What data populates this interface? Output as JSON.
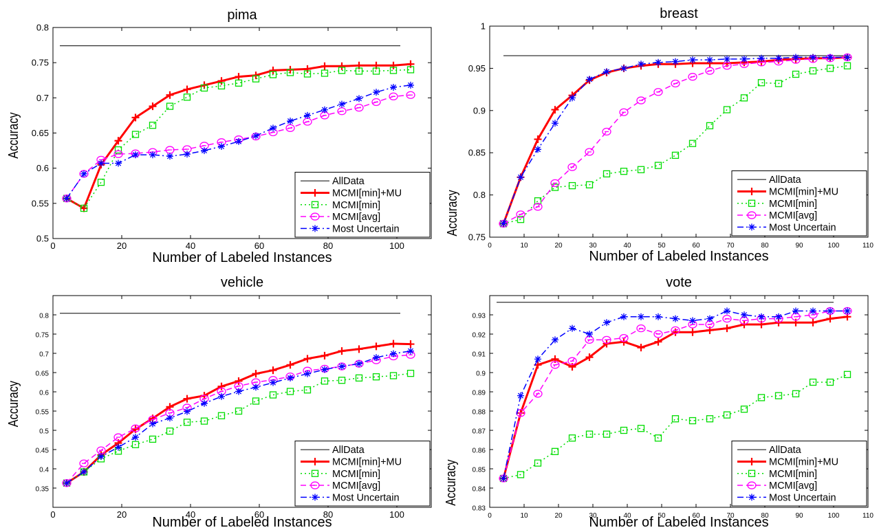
{
  "chart_data": [
    {
      "type": "line",
      "title": "pima",
      "xlabel": "Number of Labeled Instances",
      "ylabel": "Accuracy",
      "xlim": [
        0,
        110
      ],
      "ylim": [
        0.5,
        0.8
      ],
      "xticks": [
        0,
        20,
        40,
        60,
        80,
        100
      ],
      "xtick_labels": [
        "0",
        "20",
        "40",
        "60",
        "80",
        "100"
      ],
      "yticks": [
        0.5,
        0.55,
        0.6,
        0.65,
        0.7,
        0.75,
        0.8
      ],
      "ytick_labels": [
        "0.5",
        "0.55",
        "0.6",
        "0.65",
        "0.7",
        "0.75",
        "0.8"
      ],
      "legend_position": "bottom-right",
      "x": [
        4,
        9,
        14,
        19,
        24,
        29,
        34,
        39,
        44,
        49,
        54,
        59,
        64,
        69,
        74,
        79,
        84,
        89,
        94,
        99,
        104
      ],
      "reference": {
        "name": "AllData",
        "y": 0.774,
        "x_range": [
          2,
          101
        ]
      },
      "series": [
        {
          "name": "MCMI[min]+MU",
          "values": [
            0.557,
            0.543,
            0.605,
            0.639,
            0.672,
            0.688,
            0.704,
            0.712,
            0.718,
            0.724,
            0.73,
            0.732,
            0.739,
            0.74,
            0.741,
            0.745,
            0.745,
            0.746,
            0.746,
            0.746,
            0.748
          ]
        },
        {
          "name": "MCMI[min]",
          "values": [
            0.557,
            0.543,
            0.58,
            0.626,
            0.648,
            0.661,
            0.688,
            0.701,
            0.714,
            0.717,
            0.721,
            0.727,
            0.733,
            0.736,
            0.734,
            0.735,
            0.739,
            0.738,
            0.738,
            0.739,
            0.74
          ]
        },
        {
          "name": "MCMI[avg]",
          "values": [
            0.557,
            0.592,
            0.612,
            0.62,
            0.621,
            0.623,
            0.626,
            0.627,
            0.632,
            0.637,
            0.641,
            0.645,
            0.651,
            0.657,
            0.666,
            0.675,
            0.681,
            0.686,
            0.694,
            0.702,
            0.704
          ]
        },
        {
          "name": "Most Uncertain",
          "values": [
            0.557,
            0.592,
            0.607,
            0.607,
            0.619,
            0.619,
            0.617,
            0.62,
            0.625,
            0.631,
            0.638,
            0.646,
            0.657,
            0.667,
            0.675,
            0.683,
            0.691,
            0.699,
            0.708,
            0.715,
            0.718
          ]
        }
      ]
    },
    {
      "type": "line",
      "title": "breast",
      "xlabel": "Number of Labeled Instances",
      "ylabel": "Accuracy",
      "xlim": [
        0,
        110
      ],
      "ylim": [
        0.75,
        1.0
      ],
      "xticks": [
        0,
        10,
        20,
        30,
        40,
        50,
        60,
        70,
        80,
        90,
        100,
        110
      ],
      "xtick_labels": [
        "0",
        "10",
        "20",
        "30",
        "40",
        "50",
        "60",
        "70",
        "80",
        "90",
        "100",
        "110"
      ],
      "yticks": [
        0.75,
        0.8,
        0.85,
        0.9,
        0.95,
        1.0
      ],
      "ytick_labels": [
        "0.75",
        "0.8",
        "0.85",
        "0.9",
        "0.95",
        "1"
      ],
      "legend_position": "bottom-right",
      "x": [
        4,
        9,
        14,
        19,
        24,
        29,
        34,
        39,
        44,
        49,
        54,
        59,
        64,
        69,
        74,
        79,
        84,
        89,
        94,
        99,
        104
      ],
      "reference": {
        "name": "AllData",
        "y": 0.965,
        "x_range": [
          4,
          104
        ]
      },
      "series": [
        {
          "name": "MCMI[min]+MU",
          "values": [
            0.766,
            0.821,
            0.866,
            0.901,
            0.918,
            0.936,
            0.945,
            0.95,
            0.953,
            0.955,
            0.955,
            0.956,
            0.956,
            0.956,
            0.957,
            0.958,
            0.96,
            0.961,
            0.962,
            0.962,
            0.963
          ]
        },
        {
          "name": "MCMI[min]",
          "values": [
            0.766,
            0.771,
            0.793,
            0.809,
            0.811,
            0.812,
            0.825,
            0.828,
            0.83,
            0.835,
            0.847,
            0.861,
            0.882,
            0.901,
            0.915,
            0.933,
            0.932,
            0.943,
            0.947,
            0.95,
            0.953
          ]
        },
        {
          "name": "MCMI[avg]",
          "values": [
            0.766,
            0.777,
            0.786,
            0.814,
            0.833,
            0.851,
            0.875,
            0.898,
            0.912,
            0.922,
            0.932,
            0.94,
            0.947,
            0.953,
            0.955,
            0.957,
            0.958,
            0.96,
            0.961,
            0.962,
            0.963
          ]
        },
        {
          "name": "Most Uncertain",
          "values": [
            0.766,
            0.821,
            0.854,
            0.885,
            0.915,
            0.937,
            0.946,
            0.95,
            0.955,
            0.957,
            0.958,
            0.96,
            0.96,
            0.961,
            0.961,
            0.962,
            0.962,
            0.963,
            0.963,
            0.963,
            0.963
          ]
        }
      ]
    },
    {
      "type": "line",
      "title": "vehicle",
      "xlabel": "Number of Labeled Instances",
      "ylabel": "Accuracy",
      "xlim": [
        0,
        110
      ],
      "ylim": [
        0.3,
        0.85
      ],
      "xticks": [
        0,
        20,
        40,
        60,
        80,
        100
      ],
      "xtick_labels": [
        "0",
        "20",
        "40",
        "60",
        "80",
        "100"
      ],
      "yticks": [
        0.35,
        0.4,
        0.45,
        0.5,
        0.55,
        0.6,
        0.65,
        0.7,
        0.75,
        0.8
      ],
      "ytick_labels": [
        "0.35",
        "0.4",
        "0.45",
        "0.5",
        "0.55",
        "0.6",
        "0.65",
        "0.7",
        "0.75",
        "0.8"
      ],
      "legend_position": "bottom-right",
      "x": [
        4,
        9,
        14,
        19,
        24,
        29,
        34,
        39,
        44,
        49,
        54,
        59,
        64,
        69,
        74,
        79,
        84,
        89,
        94,
        99,
        104
      ],
      "reference": {
        "name": "AllData",
        "y": 0.804,
        "x_range": [
          2,
          101
        ]
      },
      "series": [
        {
          "name": "MCMI[min]+MU",
          "values": [
            0.363,
            0.392,
            0.436,
            0.467,
            0.503,
            0.531,
            0.561,
            0.582,
            0.59,
            0.614,
            0.628,
            0.647,
            0.656,
            0.67,
            0.686,
            0.694,
            0.706,
            0.711,
            0.718,
            0.725,
            0.724
          ]
        },
        {
          "name": "MCMI[min]",
          "values": [
            0.363,
            0.392,
            0.426,
            0.446,
            0.463,
            0.477,
            0.498,
            0.521,
            0.524,
            0.538,
            0.55,
            0.576,
            0.592,
            0.601,
            0.605,
            0.628,
            0.63,
            0.636,
            0.639,
            0.642,
            0.648
          ]
        },
        {
          "name": "MCMI[avg]",
          "values": [
            0.363,
            0.414,
            0.448,
            0.482,
            0.505,
            0.528,
            0.545,
            0.559,
            0.582,
            0.601,
            0.615,
            0.625,
            0.631,
            0.64,
            0.655,
            0.66,
            0.666,
            0.673,
            0.682,
            0.692,
            0.696
          ]
        },
        {
          "name": "Most Uncertain",
          "values": [
            0.363,
            0.392,
            0.432,
            0.456,
            0.482,
            0.517,
            0.532,
            0.549,
            0.57,
            0.588,
            0.601,
            0.612,
            0.624,
            0.636,
            0.647,
            0.658,
            0.666,
            0.673,
            0.689,
            0.699,
            0.706
          ]
        }
      ]
    },
    {
      "type": "line",
      "title": "vote",
      "xlabel": "Number of Labeled Instances",
      "ylabel": "Accuracy",
      "xlim": [
        0,
        110
      ],
      "ylim": [
        0.83,
        0.94
      ],
      "xticks": [
        0,
        10,
        20,
        30,
        40,
        50,
        60,
        70,
        80,
        90,
        100,
        110
      ],
      "xtick_labels": [
        "0",
        "10",
        "20",
        "30",
        "40",
        "50",
        "60",
        "70",
        "80",
        "90",
        "100",
        "110"
      ],
      "yticks": [
        0.83,
        0.84,
        0.85,
        0.86,
        0.87,
        0.88,
        0.89,
        0.9,
        0.91,
        0.92,
        0.93
      ],
      "ytick_labels": [
        "0.83",
        "0.84",
        "0.85",
        "0.86",
        "0.87",
        "0.88",
        "0.89",
        "0.9",
        "0.91",
        "0.92",
        "0.93"
      ],
      "legend_position": "bottom-right",
      "x": [
        4,
        9,
        14,
        19,
        24,
        29,
        34,
        39,
        44,
        49,
        54,
        59,
        64,
        69,
        74,
        79,
        84,
        89,
        94,
        99,
        104
      ],
      "reference": {
        "name": "AllData",
        "y": 0.9365,
        "x_range": [
          2,
          100
        ]
      },
      "series": [
        {
          "name": "MCMI[min]+MU",
          "values": [
            0.845,
            0.879,
            0.904,
            0.907,
            0.903,
            0.908,
            0.915,
            0.916,
            0.913,
            0.916,
            0.921,
            0.921,
            0.922,
            0.923,
            0.925,
            0.925,
            0.926,
            0.926,
            0.926,
            0.928,
            0.929
          ]
        },
        {
          "name": "MCMI[min]",
          "values": [
            0.845,
            0.847,
            0.853,
            0.859,
            0.866,
            0.868,
            0.868,
            0.87,
            0.871,
            0.866,
            0.876,
            0.875,
            0.876,
            0.878,
            0.881,
            0.887,
            0.888,
            0.889,
            0.895,
            0.895,
            0.899
          ]
        },
        {
          "name": "MCMI[avg]",
          "values": [
            0.845,
            0.879,
            0.889,
            0.904,
            0.906,
            0.917,
            0.917,
            0.918,
            0.923,
            0.92,
            0.922,
            0.925,
            0.925,
            0.928,
            0.927,
            0.928,
            0.928,
            0.929,
            0.93,
            0.932,
            0.932
          ]
        },
        {
          "name": "Most Uncertain",
          "values": [
            0.845,
            0.888,
            0.907,
            0.917,
            0.923,
            0.92,
            0.926,
            0.929,
            0.929,
            0.929,
            0.928,
            0.927,
            0.928,
            0.932,
            0.93,
            0.929,
            0.929,
            0.932,
            0.932,
            0.932,
            0.932
          ]
        }
      ]
    }
  ],
  "style": {
    "series_colors": [
      "#ff0000",
      "#00dd00",
      "#ff00ff",
      "#0000ff"
    ],
    "series_markers": [
      "plus",
      "square",
      "circle",
      "star"
    ],
    "series_dashes": [
      "solid",
      "dotted",
      "dashed",
      "dashdot"
    ],
    "reference_color": "#000000"
  }
}
